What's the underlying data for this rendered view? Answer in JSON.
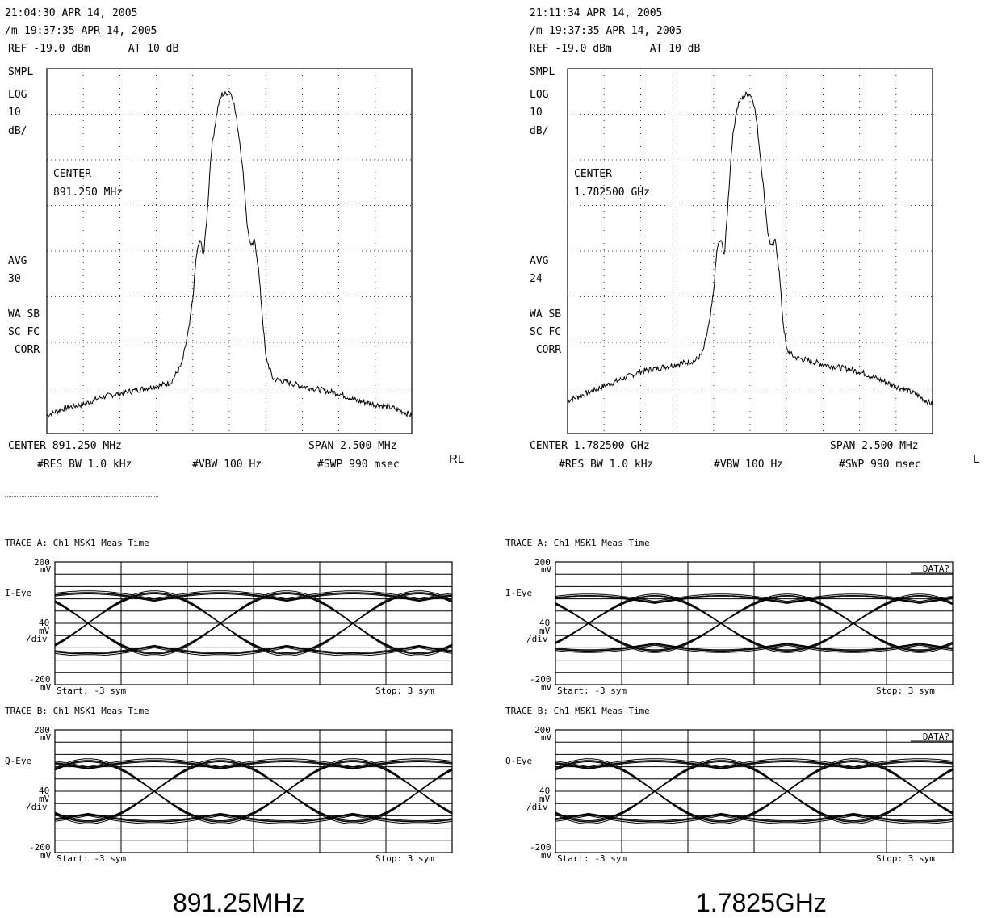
{
  "chart_data": [
    {
      "type": "line",
      "title": "",
      "header": [
        "21:04:30 APR 14, 2005",
        "19:37:35 APR 14, 2005",
        "REF -19.0 dBm      AT 10 dB"
      ],
      "trace_flag": "/m",
      "side_labels": {
        "mode": "SMPL",
        "scale": [
          "LOG",
          "10",
          "dB/"
        ],
        "center": [
          "CENTER",
          "891.250 MHz"
        ],
        "avg": [
          "AVG",
          "30"
        ],
        "corr": [
          "WA SB",
          "SC FC",
          " CORR"
        ]
      },
      "footer": {
        "center": "CENTER 891.250 MHz",
        "span": "SPAN 2.500 MHz",
        "rbw": "#RES BW 1.0 kHz",
        "vbw": "#VBW 100 Hz",
        "swp": "#SWP 990 msec"
      },
      "right_label": "RL",
      "x": {
        "center_mhz": 891.25,
        "span_mhz": 2.5
      },
      "ylim_db": [
        -119,
        -19
      ],
      "grid": true,
      "spectrum_db": [
        [
          0,
          -114
        ],
        [
          0.05,
          -112
        ],
        [
          0.1,
          -111
        ],
        [
          0.15,
          -109
        ],
        [
          0.2,
          -108
        ],
        [
          0.25,
          -107
        ],
        [
          0.3,
          -106
        ],
        [
          0.34,
          -105
        ],
        [
          0.37,
          -100
        ],
        [
          0.39,
          -90
        ],
        [
          0.4,
          -82
        ],
        [
          0.41,
          -70
        ],
        [
          0.42,
          -66
        ],
        [
          0.43,
          -70
        ],
        [
          0.44,
          -58
        ],
        [
          0.45,
          -42
        ],
        [
          0.46,
          -35
        ],
        [
          0.47,
          -29
        ],
        [
          0.48,
          -26
        ],
        [
          0.49,
          -26
        ],
        [
          0.5,
          -25
        ],
        [
          0.51,
          -27
        ],
        [
          0.52,
          -33
        ],
        [
          0.53,
          -40
        ],
        [
          0.54,
          -50
        ],
        [
          0.55,
          -63
        ],
        [
          0.56,
          -68
        ],
        [
          0.57,
          -66
        ],
        [
          0.58,
          -74
        ],
        [
          0.59,
          -86
        ],
        [
          0.6,
          -98
        ],
        [
          0.62,
          -104
        ],
        [
          0.66,
          -105
        ],
        [
          0.7,
          -106
        ],
        [
          0.75,
          -107
        ],
        [
          0.8,
          -108
        ],
        [
          0.85,
          -110
        ],
        [
          0.9,
          -111
        ],
        [
          0.95,
          -112
        ],
        [
          1.0,
          -114
        ]
      ]
    },
    {
      "type": "line",
      "title": "",
      "header": [
        "21:11:34 APR 14, 2005",
        "19:37:35 APR 14, 2005",
        "REF -19.0 dBm      AT 10 dB"
      ],
      "trace_flag": "/m",
      "side_labels": {
        "mode": "SMPL",
        "scale": [
          "LOG",
          "10",
          "dB/"
        ],
        "center": [
          "CENTER",
          "1.782500 GHz"
        ],
        "avg": [
          "AVG",
          "24"
        ],
        "corr": [
          "WA SB",
          "SC FC",
          " CORR"
        ]
      },
      "footer": {
        "center": "CENTER 1.782500 GHz",
        "span": "SPAN 2.500 MHz",
        "rbw": "#RES BW 1.0 kHz",
        "vbw": "#VBW 100 Hz",
        "swp": "#SWP 990 msec"
      },
      "right_label": "L",
      "x": {
        "center_ghz": 1.7825,
        "span_mhz": 2.5
      },
      "ylim_db": [
        -119,
        -19
      ],
      "grid": true,
      "spectrum_db": [
        [
          0,
          -110
        ],
        [
          0.05,
          -108
        ],
        [
          0.1,
          -106
        ],
        [
          0.15,
          -104
        ],
        [
          0.2,
          -102
        ],
        [
          0.25,
          -101
        ],
        [
          0.3,
          -100
        ],
        [
          0.35,
          -99
        ],
        [
          0.37,
          -97
        ],
        [
          0.39,
          -88
        ],
        [
          0.4,
          -80
        ],
        [
          0.41,
          -68
        ],
        [
          0.42,
          -66
        ],
        [
          0.43,
          -70
        ],
        [
          0.44,
          -55
        ],
        [
          0.45,
          -40
        ],
        [
          0.46,
          -32
        ],
        [
          0.47,
          -28
        ],
        [
          0.48,
          -27
        ],
        [
          0.49,
          -26
        ],
        [
          0.5,
          -26
        ],
        [
          0.51,
          -28
        ],
        [
          0.52,
          -35
        ],
        [
          0.53,
          -45
        ],
        [
          0.54,
          -55
        ],
        [
          0.55,
          -65
        ],
        [
          0.56,
          -68
        ],
        [
          0.57,
          -66
        ],
        [
          0.58,
          -75
        ],
        [
          0.59,
          -88
        ],
        [
          0.6,
          -96
        ],
        [
          0.62,
          -98
        ],
        [
          0.66,
          -99
        ],
        [
          0.7,
          -100
        ],
        [
          0.75,
          -101
        ],
        [
          0.8,
          -102
        ],
        [
          0.85,
          -104
        ],
        [
          0.9,
          -106
        ],
        [
          0.95,
          -108
        ],
        [
          1.0,
          -111
        ]
      ]
    },
    {
      "type": "line",
      "trace": "TRACE A: Ch1 MSK1 Meas Time",
      "label": "I-Eye",
      "y_top": [
        "200",
        "mV"
      ],
      "y_div": [
        "40",
        "mV",
        "/div"
      ],
      "y_bottom": [
        "-200",
        "mV"
      ],
      "start": "Start: -3 sym",
      "stop": "Stop: 3 sym",
      "flag": "",
      "ylim_mv": [
        -200,
        200
      ],
      "xlim_sym": [
        -3,
        3
      ],
      "eye_level_mv": 100,
      "crossing_sym": [
        -2.5,
        -0.5,
        1.5
      ],
      "grid": true
    },
    {
      "type": "line",
      "trace": "TRACE B: Ch1 MSK1 Meas Time",
      "label": "Q-Eye",
      "y_top": [
        "200",
        "mV"
      ],
      "y_div": [
        "40",
        "mV",
        "/div"
      ],
      "y_bottom": [
        "-200",
        "mV"
      ],
      "start": "Start: -3 sym",
      "stop": "Stop: 3 sym",
      "flag": "",
      "ylim_mv": [
        -200,
        200
      ],
      "xlim_sym": [
        -3,
        3
      ],
      "eye_level_mv": 100,
      "crossing_sym": [
        -1.5,
        0.5,
        2.5
      ],
      "grid": true
    },
    {
      "type": "line",
      "trace": "TRACE A: Ch1 MSK1 Meas Time",
      "label": "I-Eye",
      "y_top": [
        "200",
        "mV"
      ],
      "y_div": [
        "40",
        "mV",
        "/div"
      ],
      "y_bottom": [
        "-200",
        "mV"
      ],
      "start": "Start: -3 sym",
      "stop": "Stop: 3 sym",
      "flag": "DATA?",
      "ylim_mv": [
        -200,
        200
      ],
      "xlim_sym": [
        -3,
        3
      ],
      "eye_level_mv": 90,
      "crossing_sym": [
        -2.5,
        -0.5,
        1.5
      ],
      "grid": true
    },
    {
      "type": "line",
      "trace": "TRACE B: Ch1 MSK1 Meas Time",
      "label": "Q-Eye",
      "y_top": [
        "200",
        "mV"
      ],
      "y_div": [
        "40",
        "mV",
        "/div"
      ],
      "y_bottom": [
        "-200",
        "mV"
      ],
      "start": "Start: -3 sym",
      "stop": "Stop: 3 sym",
      "flag": "DATA?",
      "ylim_mv": [
        -200,
        200
      ],
      "xlim_sym": [
        -3,
        3
      ],
      "eye_level_mv": 100,
      "crossing_sym": [
        -1.5,
        0.5,
        2.5
      ],
      "grid": true
    }
  ],
  "captions": {
    "left": "891.25MHz",
    "right": "1.7825GHz"
  }
}
